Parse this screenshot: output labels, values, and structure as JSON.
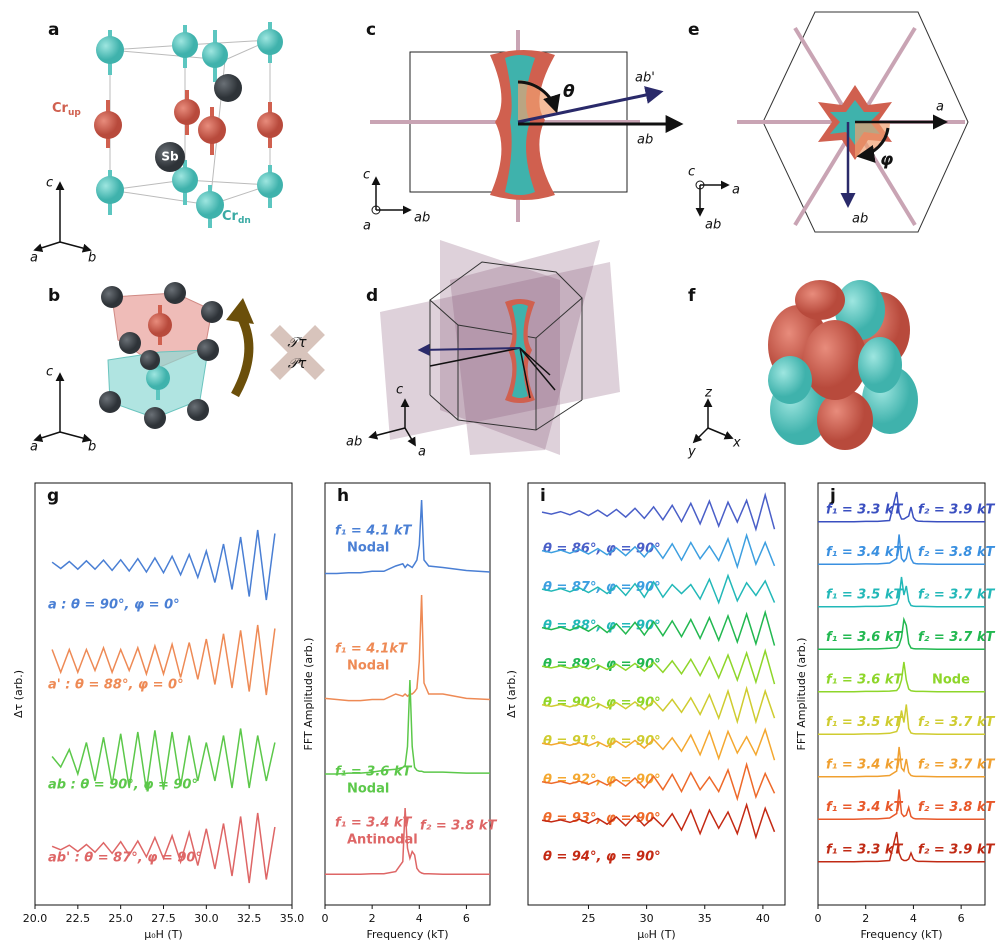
{
  "figure": {
    "a": {
      "label": "a",
      "sb": "Sb",
      "cr_up": {
        "base": "Cr",
        "sub": "up"
      },
      "cr_dn": {
        "base": "Cr",
        "sub": "dn"
      },
      "axes": [
        "c",
        "a",
        "b"
      ]
    },
    "b": {
      "label": "b",
      "axes": [
        "c",
        "a",
        "b"
      ],
      "t": "𝒯τ",
      "p": "𝒫τ"
    },
    "c": {
      "label": "c",
      "theta": "θ",
      "ab_prime": "ab'",
      "ab": "ab",
      "axes": [
        "c",
        "a",
        "ab"
      ]
    },
    "d": {
      "label": "d",
      "axes": [
        "c",
        "ab",
        "a"
      ]
    },
    "e": {
      "label": "e",
      "a": "a",
      "phi": "φ",
      "ab": "ab",
      "axes": [
        "c",
        "a",
        "ab"
      ]
    },
    "f": {
      "label": "f",
      "axes": [
        "z",
        "y",
        "x"
      ]
    }
  },
  "chart_data": [
    {
      "type": "line",
      "panel": "g",
      "xlabel": "μ₀H (T)",
      "ylabel": "Δτ (arb.)",
      "xlim": [
        20,
        35
      ],
      "ylim": [
        -1,
        1
      ],
      "xticks": [
        {
          "value": 20,
          "label": "20.0"
        },
        {
          "value": 22.5,
          "label": "22.5"
        },
        {
          "value": 25,
          "label": "25.0"
        },
        {
          "value": 27.5,
          "label": "27.5"
        },
        {
          "value": 30,
          "label": "30.0"
        },
        {
          "value": 32.5,
          "label": "32.5"
        },
        {
          "value": 35,
          "label": "35.0"
        }
      ],
      "x": [
        21,
        21.5,
        22,
        22.5,
        23,
        23.5,
        24,
        24.5,
        25,
        25.5,
        26,
        26.5,
        27,
        27.5,
        28,
        28.5,
        29,
        29.5,
        30,
        30.5,
        31,
        31.5,
        32,
        32.5,
        33,
        33.5,
        34
      ],
      "series": [
        {
          "name": "a : θ = 90°, φ = 0°",
          "color": "#4a7fd4",
          "values": [
            0.08,
            -0.1,
            0.1,
            -0.12,
            0.12,
            -0.12,
            0.14,
            -0.15,
            0.15,
            -0.17,
            0.18,
            -0.2,
            0.2,
            -0.22,
            0.25,
            -0.28,
            0.3,
            -0.35,
            0.4,
            -0.5,
            0.6,
            -0.7,
            0.8,
            -0.9,
            1.0,
            -1.0,
            0.9
          ]
        },
        {
          "name": "a' : θ = 88°, φ = 0°",
          "color": "#ee8a55",
          "values": [
            0.3,
            -0.35,
            0.3,
            -0.35,
            0.3,
            -0.3,
            0.35,
            -0.35,
            0.3,
            -0.3,
            0.35,
            -0.4,
            0.4,
            -0.4,
            0.45,
            -0.5,
            0.5,
            -0.55,
            0.6,
            -0.7,
            0.75,
            -0.8,
            0.85,
            -0.9,
            1.0,
            -1.0,
            0.9
          ]
        },
        {
          "name": "ab : θ = 90°, φ = 90°",
          "color": "#5cc84a",
          "values": [
            0.1,
            -0.2,
            0.3,
            -0.4,
            0.5,
            -0.6,
            0.65,
            -0.7,
            0.75,
            -0.8,
            0.8,
            -0.85,
            0.85,
            -0.85,
            0.8,
            -0.75,
            0.7,
            -0.6,
            0.5,
            -0.6,
            0.7,
            -0.8,
            0.9,
            -0.8,
            0.7,
            -0.6,
            0.5
          ]
        },
        {
          "name": "ab' : θ = 87°, φ = 90°",
          "color": "#de6666",
          "values": [
            0.05,
            -0.05,
            0.08,
            -0.1,
            0.1,
            -0.12,
            0.15,
            -0.15,
            0.18,
            -0.2,
            0.2,
            -0.25,
            0.3,
            -0.3,
            0.35,
            -0.4,
            0.45,
            -0.5,
            0.55,
            -0.6,
            0.7,
            -0.8,
            0.9,
            -1.0,
            1.0,
            -0.9,
            0.6
          ]
        }
      ]
    },
    {
      "type": "line",
      "panel": "h",
      "xlabel": "Frequency (kT)",
      "ylabel": "FFT Amplitude (arb.)",
      "xlim": [
        0,
        7
      ],
      "ylim": [
        0,
        1
      ],
      "xticks": [
        0,
        2,
        4,
        6
      ],
      "x": [
        0,
        0.5,
        1,
        1.5,
        2,
        2.5,
        3,
        3.3,
        3.4,
        3.5,
        3.6,
        3.7,
        3.8,
        3.9,
        4.0,
        4.1,
        4.2,
        4.4,
        5,
        6,
        7
      ],
      "series": [
        {
          "name": "f₁ = 4.1 kT",
          "note": "Nodal",
          "color": "#4a7fd4",
          "values": [
            0.02,
            0.02,
            0.03,
            0.03,
            0.05,
            0.05,
            0.12,
            0.15,
            0.1,
            0.14,
            0.12,
            0.1,
            0.15,
            0.2,
            0.4,
            1.0,
            0.2,
            0.12,
            0.1,
            0.06,
            0.04
          ]
        },
        {
          "name": "f₁ = 4.1kT",
          "note": "Nodal",
          "color": "#ee8a55",
          "values": [
            0.06,
            0.05,
            0.04,
            0.04,
            0.05,
            0.05,
            0.1,
            0.08,
            0.1,
            0.08,
            0.1,
            0.1,
            0.12,
            0.15,
            0.4,
            1.0,
            0.2,
            0.1,
            0.1,
            0.06,
            0.05
          ]
        },
        {
          "name": "f₁ = 3.6  kT",
          "note": "Nodal",
          "color": "#5cc84a",
          "values": [
            0.01,
            0.01,
            0.02,
            0.02,
            0.03,
            0.05,
            0.06,
            0.08,
            0.1,
            0.3,
            1.0,
            0.3,
            0.08,
            0.05,
            0.04,
            0.04,
            0.03,
            0.03,
            0.03,
            0.02,
            0.02
          ]
        },
        {
          "name": "f₁ = 3.4 kT",
          "name2": "f₂ = 3.8 kT",
          "note": "Antinodal",
          "color": "#de6666",
          "values": [
            0.01,
            0.01,
            0.01,
            0.01,
            0.02,
            0.02,
            0.05,
            0.2,
            1.0,
            0.4,
            0.25,
            0.35,
            0.3,
            0.1,
            0.05,
            0.03,
            0.02,
            0.02,
            0.01,
            0.01,
            0.01
          ]
        }
      ]
    },
    {
      "type": "line",
      "panel": "i",
      "xlabel": "μ₀H (T)",
      "ylabel": "Δτ (arb.)",
      "xlim": [
        19.8,
        41.9
      ],
      "ylim": [
        -1,
        1
      ],
      "xticks": [
        25,
        30,
        35,
        40
      ],
      "x": [
        21,
        21.8,
        22.6,
        23.4,
        24.2,
        25,
        25.8,
        26.6,
        27.4,
        28.2,
        29,
        29.8,
        30.6,
        31.4,
        32.2,
        33,
        33.8,
        34.6,
        35.4,
        36.2,
        37,
        37.8,
        38.6,
        39.4,
        40.2,
        41
      ],
      "series": [
        {
          "name": "θ = 86°, φ = 90°",
          "color": "#4a5fc8",
          "values": [
            0.05,
            -0.06,
            0.08,
            -0.1,
            0.12,
            -0.14,
            0.16,
            -0.18,
            0.2,
            -0.23,
            0.26,
            -0.3,
            0.34,
            -0.38,
            0.43,
            -0.48,
            0.54,
            -0.6,
            0.66,
            -0.72,
            0.6,
            -0.5,
            0.7,
            -0.9,
            1.0,
            -0.9
          ]
        },
        {
          "name": "θ = 87°, φ = 90°",
          "color": "#3d9fe0",
          "values": [
            0.05,
            -0.06,
            0.08,
            -0.1,
            0.12,
            -0.14,
            0.16,
            -0.18,
            0.2,
            -0.23,
            0.26,
            -0.3,
            0.34,
            -0.38,
            0.43,
            -0.48,
            0.5,
            -0.4,
            0.3,
            -0.5,
            0.7,
            -0.85,
            0.9,
            -0.7,
            0.5,
            -0.8
          ]
        },
        {
          "name": "θ = 88°, φ = 90°",
          "color": "#22b8b8",
          "values": [
            0.05,
            -0.06,
            0.08,
            -0.1,
            0.12,
            -0.14,
            0.16,
            -0.2,
            0.25,
            -0.3,
            0.35,
            -0.4,
            0.45,
            -0.4,
            0.3,
            -0.2,
            0.3,
            -0.5,
            0.6,
            -0.7,
            0.8,
            -0.6,
            0.4,
            -0.3,
            0.5,
            -0.7
          ]
        },
        {
          "name": "θ = 89°, φ = 90°",
          "color": "#22b850",
          "values": [
            0.05,
            -0.06,
            0.08,
            -0.1,
            0.12,
            -0.15,
            0.18,
            -0.22,
            0.26,
            -0.3,
            0.34,
            -0.36,
            0.38,
            -0.4,
            0.42,
            -0.45,
            0.5,
            -0.55,
            0.6,
            -0.65,
            0.7,
            -0.75,
            0.8,
            -0.85,
            0.9,
            -0.95
          ]
        },
        {
          "name": "θ = 90°, φ = 90°",
          "color": "#8ed62a",
          "values": [
            0.04,
            -0.05,
            0.06,
            -0.07,
            0.08,
            -0.1,
            0.12,
            -0.14,
            0.16,
            -0.18,
            0.2,
            -0.23,
            0.26,
            -0.3,
            0.34,
            -0.38,
            0.43,
            -0.48,
            0.54,
            -0.6,
            0.66,
            -0.72,
            0.78,
            -0.84,
            0.9,
            -0.95
          ]
        },
        {
          "name": "θ = 91°, φ = 90°",
          "color": "#cfcc30",
          "values": [
            0.04,
            -0.05,
            0.06,
            -0.07,
            0.08,
            -0.1,
            0.12,
            -0.14,
            0.16,
            -0.18,
            0.2,
            -0.23,
            0.26,
            -0.3,
            0.34,
            -0.38,
            0.43,
            -0.5,
            0.6,
            -0.7,
            0.8,
            -0.9,
            0.95,
            -0.9,
            0.8,
            -0.7
          ]
        },
        {
          "name": "θ = 92°, φ = 90°",
          "color": "#f4a830",
          "values": [
            0.04,
            -0.05,
            0.06,
            -0.07,
            0.08,
            -0.1,
            0.12,
            -0.14,
            0.16,
            -0.18,
            0.2,
            -0.23,
            0.26,
            -0.3,
            0.34,
            -0.4,
            0.5,
            -0.6,
            0.7,
            -0.8,
            0.7,
            -0.5,
            0.4,
            -0.6,
            0.8,
            -0.9
          ]
        },
        {
          "name": "θ = 93°, φ = 90°",
          "color": "#ee6a2a",
          "values": [
            0.04,
            -0.05,
            0.06,
            -0.07,
            0.08,
            -0.1,
            0.12,
            -0.14,
            0.16,
            -0.2,
            0.25,
            -0.3,
            0.35,
            -0.4,
            0.45,
            -0.5,
            0.55,
            -0.4,
            0.3,
            -0.5,
            0.7,
            -0.9,
            1.0,
            -0.8,
            0.5,
            -0.6
          ]
        },
        {
          "name": "θ = 94°, φ = 90°",
          "color": "#c42a14",
          "values": [
            0.04,
            -0.05,
            0.06,
            -0.08,
            0.1,
            -0.12,
            0.14,
            -0.18,
            0.22,
            -0.26,
            0.3,
            -0.26,
            0.2,
            -0.3,
            0.4,
            -0.5,
            0.6,
            -0.7,
            0.6,
            -0.4,
            0.5,
            -0.7,
            0.9,
            -0.9,
            0.7,
            -0.6
          ]
        }
      ]
    },
    {
      "type": "line",
      "panel": "j",
      "xlabel": "Frequency (kT)",
      "ylabel": "FFT Amplitude (arb.)",
      "xlim": [
        0,
        7
      ],
      "ylim": [
        0,
        1
      ],
      "xticks": [
        0,
        2,
        4,
        6
      ],
      "x": [
        0,
        0.5,
        1,
        1.5,
        2,
        2.5,
        3,
        3.3,
        3.4,
        3.5,
        3.6,
        3.7,
        3.8,
        3.9,
        4.0,
        4.1,
        4.2,
        4.4,
        5,
        6,
        7
      ],
      "series": [
        {
          "name": "f₁ = 3.3 kT",
          "name2": "f₂ = 3.9 kT",
          "color": "#3a4fc0",
          "values": [
            0.01,
            0.01,
            0.01,
            0.01,
            0.02,
            0.02,
            0.05,
            1.0,
            0.3,
            0.1,
            0.1,
            0.15,
            0.2,
            0.5,
            0.15,
            0.05,
            0.03,
            0.02,
            0.01,
            0.01,
            0.01
          ]
        },
        {
          "name": "f₁ = 3.4 kT",
          "name2": "f₂ = 3.8 kT",
          "color": "#3a90e0",
          "values": [
            0.01,
            0.01,
            0.01,
            0.01,
            0.02,
            0.02,
            0.05,
            0.2,
            1.0,
            0.2,
            0.1,
            0.2,
            0.6,
            0.2,
            0.05,
            0.03,
            0.02,
            0.02,
            0.01,
            0.01,
            0.01
          ]
        },
        {
          "name": "f₁ = 3.5 kT",
          "name2": "f₂ = 3.7 kT",
          "color": "#22b8b8",
          "values": [
            0.01,
            0.01,
            0.01,
            0.01,
            0.02,
            0.02,
            0.04,
            0.1,
            0.3,
            1.0,
            0.4,
            0.7,
            0.2,
            0.05,
            0.03,
            0.02,
            0.02,
            0.02,
            0.01,
            0.01,
            0.01
          ]
        },
        {
          "name": "f₁ = 3.6 kT",
          "name2": "f₂ = 3.7 kT",
          "color": "#22b850",
          "values": [
            0.01,
            0.01,
            0.01,
            0.01,
            0.02,
            0.02,
            0.04,
            0.06,
            0.15,
            0.4,
            1.0,
            0.8,
            0.2,
            0.05,
            0.03,
            0.02,
            0.02,
            0.02,
            0.01,
            0.01,
            0.01
          ]
        },
        {
          "name": "f₁ = 3.6 kT",
          "note": "Node",
          "color": "#8ed62a",
          "values": [
            0.01,
            0.01,
            0.01,
            0.01,
            0.02,
            0.02,
            0.03,
            0.05,
            0.15,
            0.4,
            1.0,
            0.4,
            0.1,
            0.04,
            0.03,
            0.02,
            0.02,
            0.02,
            0.01,
            0.01,
            0.01
          ]
        },
        {
          "name": "f₁ = 3.5 kT",
          "name2": "f₂ = 3.7 kT",
          "color": "#cfcc30",
          "values": [
            0.01,
            0.01,
            0.01,
            0.01,
            0.02,
            0.02,
            0.04,
            0.1,
            0.3,
            0.8,
            0.4,
            1.0,
            0.2,
            0.05,
            0.03,
            0.02,
            0.02,
            0.02,
            0.01,
            0.01,
            0.01
          ]
        },
        {
          "name": "f₁ = 3.4 kT",
          "name2": "f₂ = 3.7 kT",
          "color": "#f0a030",
          "values": [
            0.01,
            0.01,
            0.01,
            0.01,
            0.02,
            0.02,
            0.05,
            0.2,
            1.0,
            0.3,
            0.2,
            0.6,
            0.15,
            0.05,
            0.03,
            0.02,
            0.02,
            0.02,
            0.01,
            0.01,
            0.01
          ]
        },
        {
          "name": "f₁ = 3.4 kT",
          "name2": "f₂ = 3.8 kT",
          "color": "#e8582a",
          "values": [
            0.01,
            0.01,
            0.01,
            0.01,
            0.02,
            0.02,
            0.05,
            0.2,
            1.0,
            0.2,
            0.1,
            0.15,
            0.4,
            0.1,
            0.04,
            0.02,
            0.02,
            0.02,
            0.01,
            0.01,
            0.01
          ]
        },
        {
          "name": "f₁ = 3.3 kT",
          "name2": "f₂ = 3.9 kT",
          "color": "#c02a14",
          "values": [
            0.01,
            0.01,
            0.01,
            0.01,
            0.02,
            0.02,
            0.05,
            1.0,
            0.3,
            0.1,
            0.05,
            0.05,
            0.1,
            0.3,
            0.1,
            0.04,
            0.02,
            0.02,
            0.01,
            0.01,
            0.01
          ]
        }
      ]
    }
  ]
}
